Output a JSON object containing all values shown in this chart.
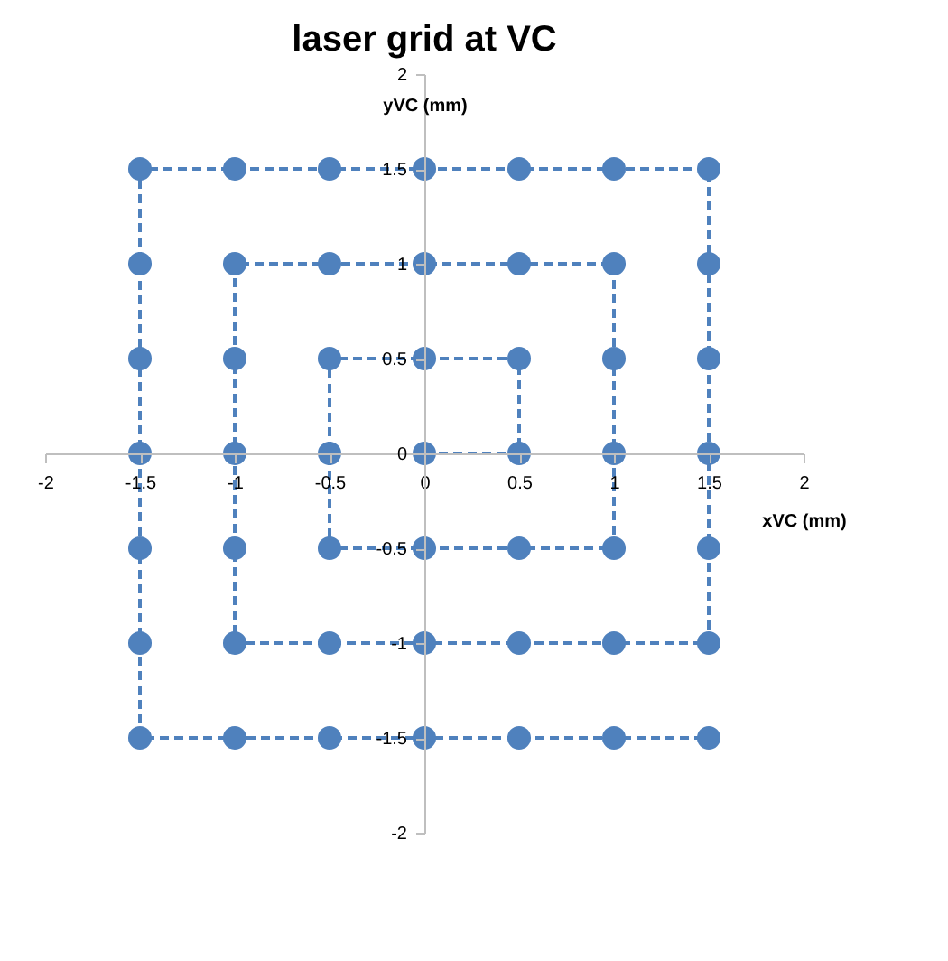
{
  "chart_data": {
    "type": "line",
    "title": "laser grid at VC",
    "xlabel": "xVC (mm)",
    "ylabel": "yVC (mm)",
    "xlim": [
      -2,
      2
    ],
    "ylim": [
      -2,
      2
    ],
    "xticks": [
      -2,
      -1.5,
      -1,
      -0.5,
      0,
      0.5,
      1,
      1.5,
      2
    ],
    "yticks": [
      -2,
      -1.5,
      -1,
      -0.5,
      0,
      0.5,
      1,
      1.5,
      2
    ],
    "grid": false,
    "legend": false,
    "marker": "circle",
    "line_style": "dashed",
    "series": [
      {
        "color": "#4f81bd",
        "x": [
          0,
          0.5,
          0.5,
          0,
          -0.5,
          -0.5,
          -0.5,
          0,
          0.5,
          1,
          1,
          1,
          1,
          0.5,
          0,
          -0.5,
          -1,
          -1,
          -1,
          -1,
          -1,
          -0.5,
          0,
          0.5,
          1,
          1.5,
          1.5,
          1.5,
          1.5,
          1.5,
          1.5,
          1,
          0.5,
          0,
          -0.5,
          -1,
          -1.5,
          -1.5,
          -1.5,
          -1.5,
          -1.5,
          -1.5,
          -1.5,
          -1,
          -0.5,
          0,
          0.5,
          1,
          1.5
        ],
        "values": [
          0,
          0,
          0.5,
          0.5,
          0.5,
          0,
          -0.5,
          -0.5,
          -0.5,
          -0.5,
          0,
          0.5,
          1,
          1,
          1,
          1,
          1,
          0.5,
          0,
          -0.5,
          -1,
          -1,
          -1,
          -1,
          -1,
          -1,
          -0.5,
          0,
          0.5,
          1,
          1.5,
          1.5,
          1.5,
          1.5,
          1.5,
          1.5,
          1.5,
          1,
          0.5,
          0,
          -0.5,
          -1,
          -1.5,
          -1.5,
          -1.5,
          -1.5,
          -1.5,
          -1.5,
          -1.5
        ]
      }
    ]
  }
}
